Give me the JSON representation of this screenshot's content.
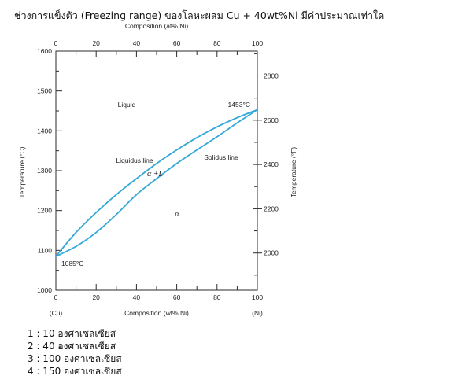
{
  "question": "ช่วงการแข็งตัว (Freezing range) ของโลหะผสม Cu + 40wt%Ni มีค่าประมาณเท่าใด",
  "chart_data": {
    "type": "line",
    "xlabel": "Composition (wt% Ni)",
    "x_top_label": "Composition (at% Ni)",
    "ylabel": "Temperature (°C)",
    "y_right_label": "Temperature (°F)",
    "xlim": [
      0,
      100
    ],
    "ylim": [
      1000,
      1600
    ],
    "x_ticks": [
      0,
      20,
      40,
      60,
      80,
      100
    ],
    "x_top_ticks": [
      0,
      20,
      40,
      60,
      80,
      100
    ],
    "y_ticks": [
      1000,
      1100,
      1200,
      1300,
      1400,
      1500,
      1600
    ],
    "y_right_ticks": [
      2000,
      2200,
      2400,
      2600,
      2800
    ],
    "x_end_labels": [
      "(Cu)",
      "(Ni)"
    ],
    "series": [
      {
        "name": "Liquidus line",
        "x": [
          0,
          10,
          20,
          30,
          40,
          50,
          60,
          70,
          80,
          90,
          100
        ],
        "y": [
          1085,
          1145,
          1195,
          1240,
          1280,
          1318,
          1352,
          1383,
          1410,
          1433,
          1453
        ]
      },
      {
        "name": "Solidus line",
        "x": [
          0,
          10,
          20,
          30,
          40,
          50,
          60,
          70,
          80,
          90,
          100
        ],
        "y": [
          1085,
          1110,
          1145,
          1190,
          1240,
          1280,
          1318,
          1352,
          1385,
          1420,
          1453
        ]
      }
    ],
    "region_labels": [
      "Liquid",
      "α +L",
      "α"
    ],
    "point_labels": [
      "1453°C",
      "1085°C"
    ],
    "line_color": "#34a8d8",
    "grid": false,
    "legend": "none"
  },
  "options": [
    "1 : 10 องศาเซลเซียส",
    "2 : 40 องศาเซลเซียส",
    "3 : 100 องศาเซลเซียส",
    "4 : 150 องศาเซลเซียส"
  ]
}
